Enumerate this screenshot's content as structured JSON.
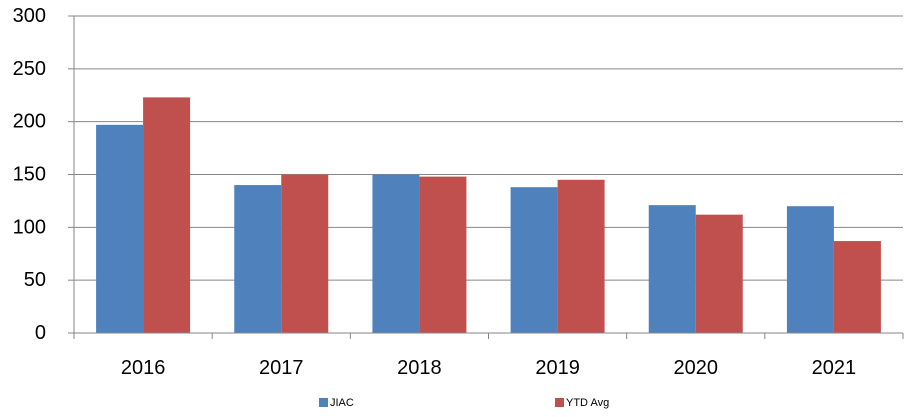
{
  "chart_data": {
    "type": "bar",
    "title": "",
    "xlabel": "",
    "ylabel": "",
    "categories": [
      "2016",
      "2017",
      "2018",
      "2019",
      "2020",
      "2021"
    ],
    "series": [
      {
        "name": "JIAC",
        "values": [
          197,
          140,
          150,
          138,
          121,
          120
        ],
        "color": "#4F81BD"
      },
      {
        "name": "YTD Avg",
        "values": [
          223,
          150,
          148,
          145,
          112,
          87
        ],
        "color": "#C0504D"
      }
    ],
    "ylim": [
      0,
      300
    ],
    "yticks": [
      0,
      50,
      100,
      150,
      200,
      250,
      300
    ],
    "grid": true,
    "legend": "bottom"
  }
}
